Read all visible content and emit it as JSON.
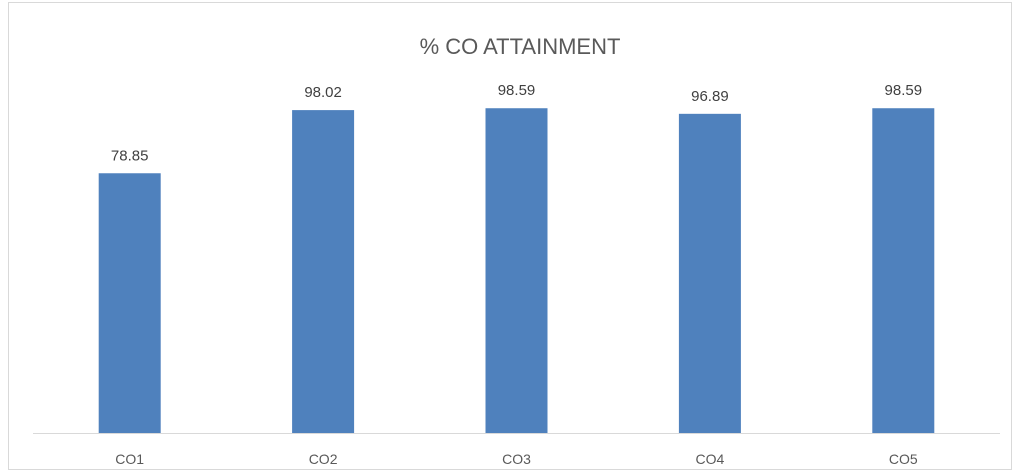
{
  "chart_data": {
    "type": "bar",
    "title": "% CO ATTAINMENT",
    "categories": [
      "CO1",
      "CO2",
      "CO3",
      "CO4",
      "CO5"
    ],
    "values": [
      78.85,
      98.02,
      98.59,
      96.89,
      98.59
    ],
    "data_labels": [
      "78.85",
      "98.02",
      "98.59",
      "96.89",
      "98.59"
    ],
    "xlabel": "",
    "ylabel": "",
    "ylim": [
      0,
      120
    ],
    "grid": false,
    "legend": "none",
    "colors": {
      "bar": "#4f81bd",
      "axis": "#d9d9d9",
      "title": "#595959",
      "label": "#404040"
    }
  }
}
